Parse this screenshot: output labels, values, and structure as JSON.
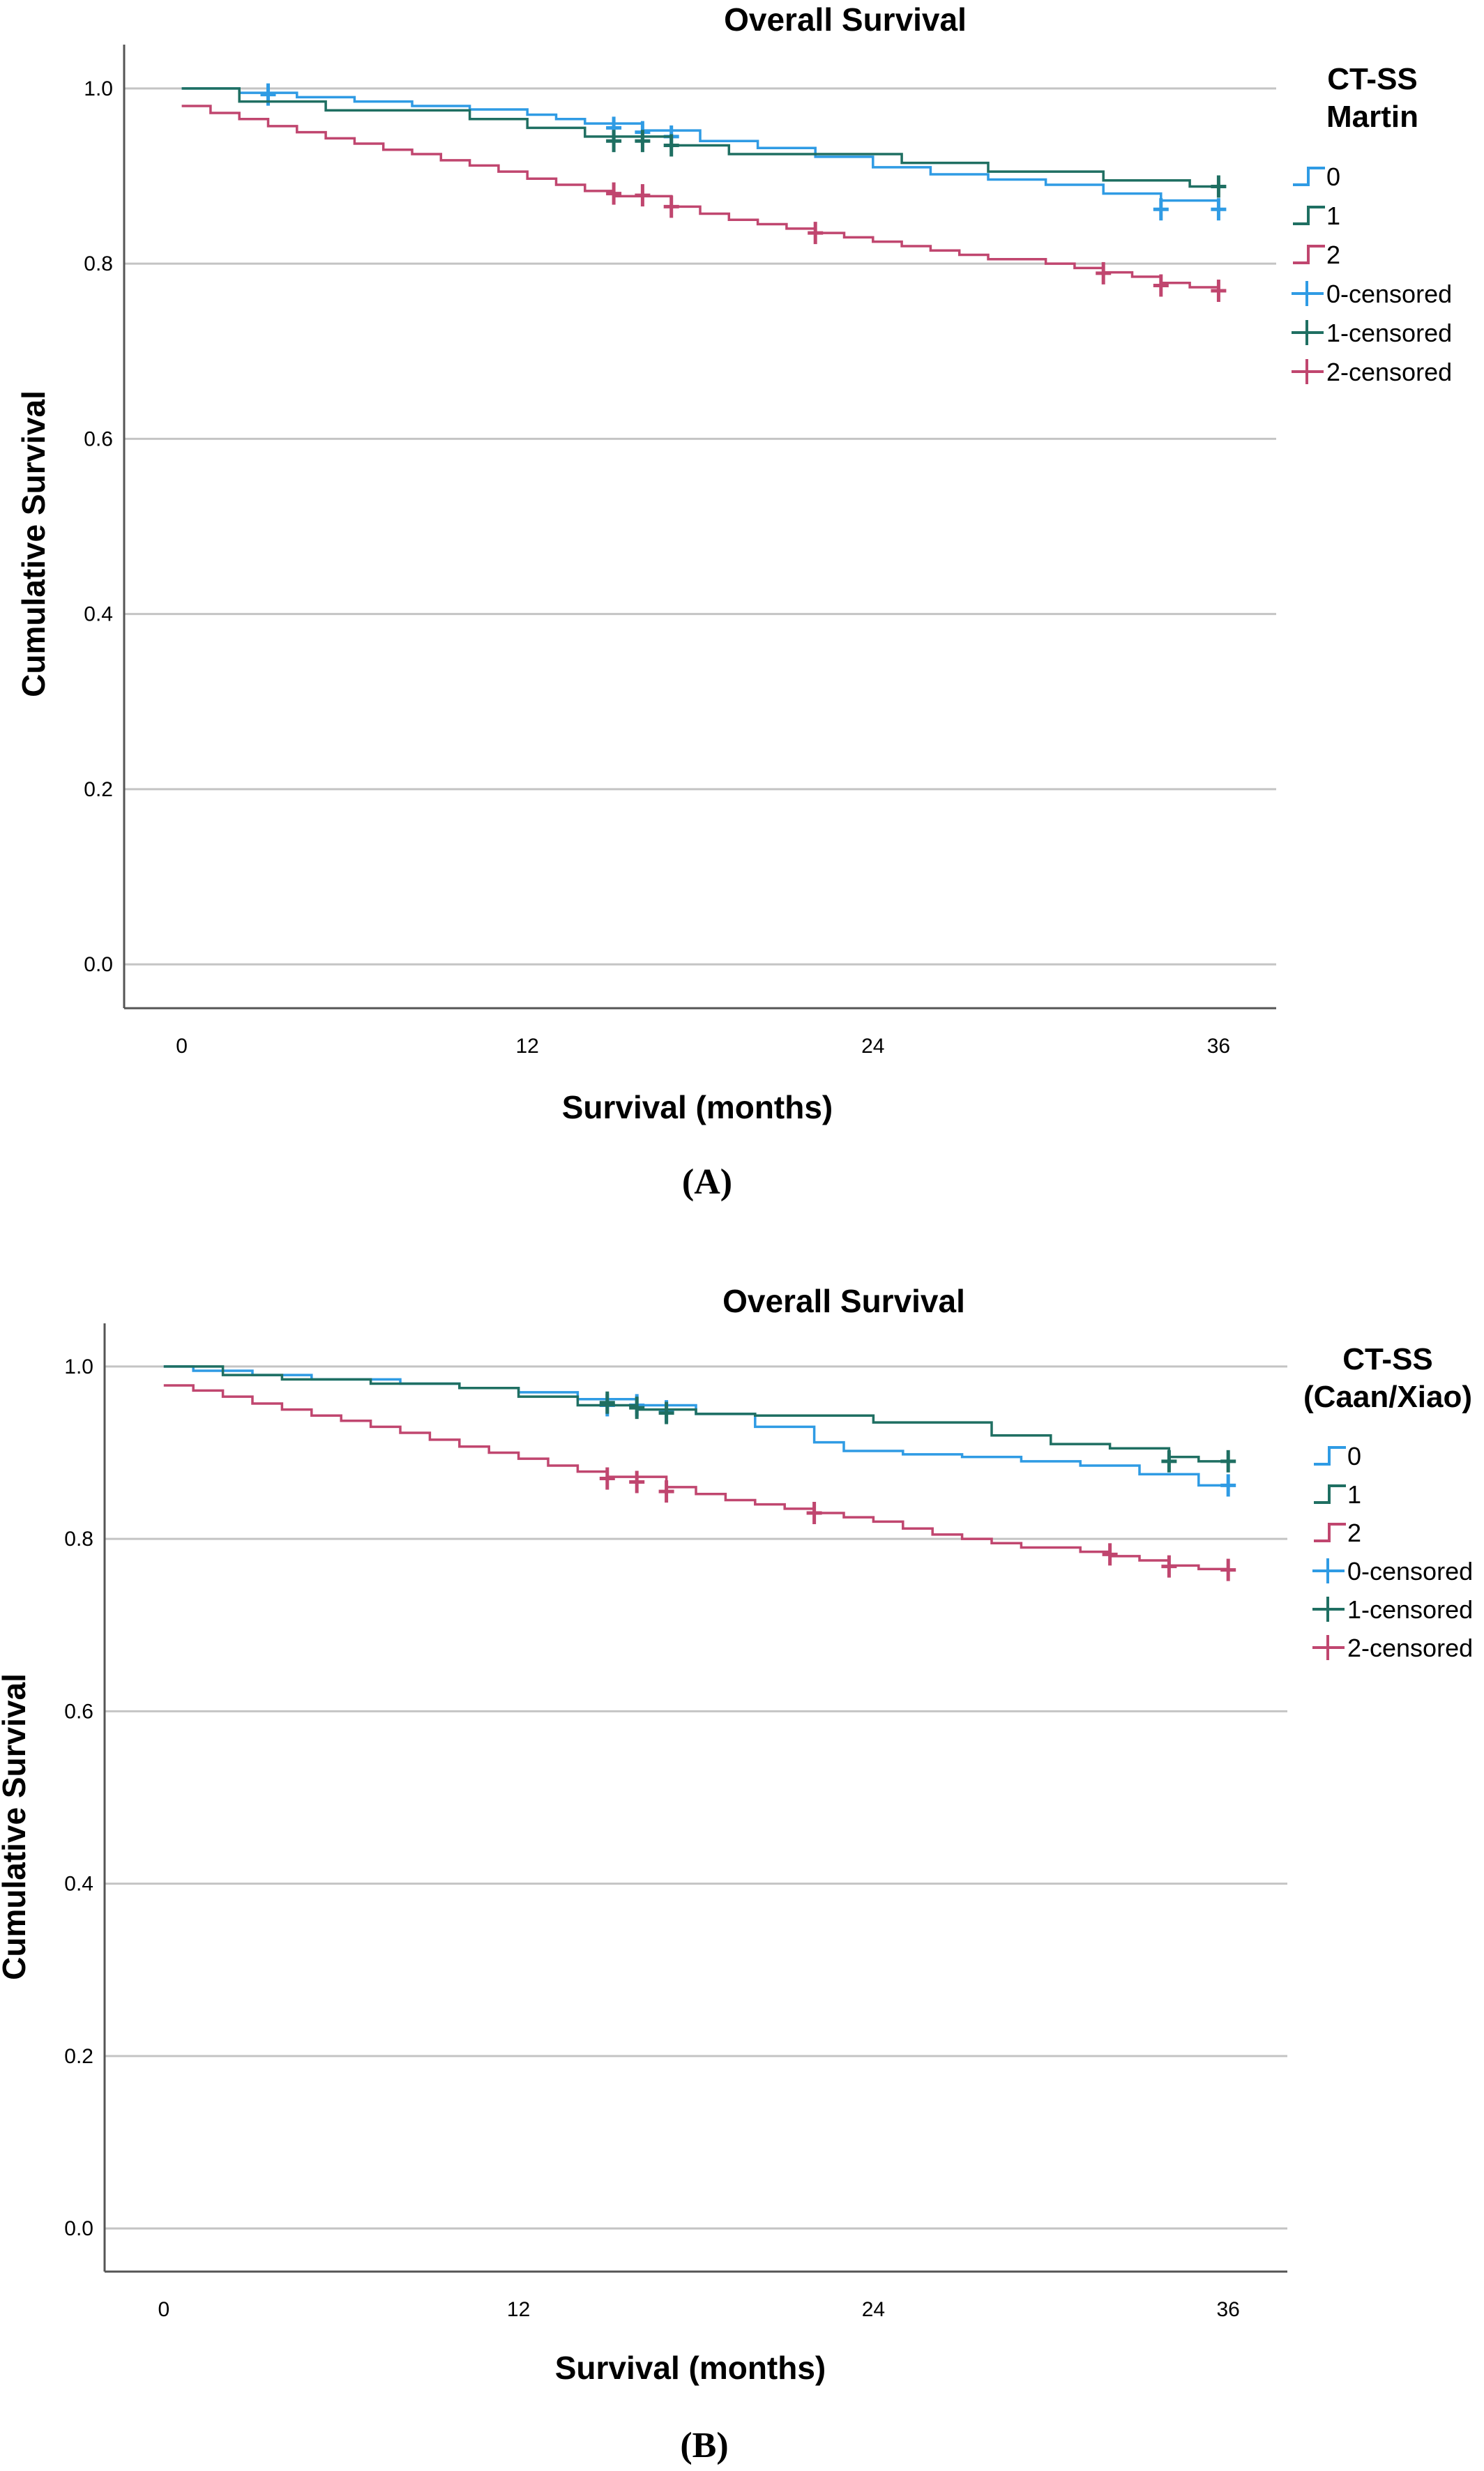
{
  "chart_data": [
    {
      "type": "line",
      "title": "Overall Survival",
      "caption": "(A)",
      "xlabel": "Survival (months)",
      "ylabel": "Cumulative Survival",
      "xlim": [
        -2,
        38
      ],
      "ylim": [
        -0.05,
        1.05
      ],
      "x_ticks": [
        "0",
        "12",
        "24",
        "36"
      ],
      "y_ticks": [
        "0.0",
        "0.2",
        "0.4",
        "0.6",
        "0.8",
        "1.0"
      ],
      "grid": "horizontal",
      "legend": {
        "title": [
          "CT-SS",
          "Martin"
        ],
        "placement": "right",
        "entries": [
          "0",
          "1",
          "2",
          "0-censored",
          "1-censored",
          "2-censored"
        ]
      },
      "series": [
        {
          "name": "0",
          "color": "#2f9be4",
          "steps": [
            [
              0,
              1.0
            ],
            [
              2,
              0.995
            ],
            [
              4,
              0.99
            ],
            [
              6,
              0.985
            ],
            [
              8,
              0.98
            ],
            [
              10,
              0.976
            ],
            [
              12,
              0.97
            ],
            [
              13,
              0.965
            ],
            [
              14,
              0.96
            ],
            [
              16,
              0.952
            ],
            [
              18,
              0.94
            ],
            [
              20,
              0.932
            ],
            [
              22,
              0.922
            ],
            [
              24,
              0.91
            ],
            [
              26,
              0.902
            ],
            [
              28,
              0.896
            ],
            [
              30,
              0.89
            ],
            [
              32,
              0.88
            ],
            [
              34,
              0.872
            ],
            [
              36,
              0.862
            ]
          ],
          "censored": [
            [
              3,
              0.993
            ],
            [
              15,
              0.955
            ],
            [
              16,
              0.95
            ],
            [
              17,
              0.945
            ],
            [
              34,
              0.862
            ],
            [
              36,
              0.862
            ]
          ]
        },
        {
          "name": "1",
          "color": "#1f6f62",
          "steps": [
            [
              0,
              1.0
            ],
            [
              2,
              0.985
            ],
            [
              5,
              0.975
            ],
            [
              10,
              0.965
            ],
            [
              12,
              0.955
            ],
            [
              14,
              0.945
            ],
            [
              17,
              0.935
            ],
            [
              19,
              0.925
            ],
            [
              25,
              0.915
            ],
            [
              28,
              0.905
            ],
            [
              32,
              0.895
            ],
            [
              35,
              0.888
            ]
          ],
          "censored": [
            [
              15,
              0.94
            ],
            [
              16,
              0.94
            ],
            [
              17,
              0.935
            ],
            [
              36,
              0.888
            ]
          ]
        },
        {
          "name": "2",
          "color": "#c0466f",
          "steps": [
            [
              0,
              0.98
            ],
            [
              1,
              0.972
            ],
            [
              2,
              0.965
            ],
            [
              3,
              0.957
            ],
            [
              4,
              0.95
            ],
            [
              5,
              0.943
            ],
            [
              6,
              0.937
            ],
            [
              7,
              0.93
            ],
            [
              8,
              0.925
            ],
            [
              9,
              0.918
            ],
            [
              10,
              0.912
            ],
            [
              11,
              0.905
            ],
            [
              12,
              0.897
            ],
            [
              13,
              0.89
            ],
            [
              14,
              0.883
            ],
            [
              15,
              0.877
            ],
            [
              17,
              0.865
            ],
            [
              18,
              0.857
            ],
            [
              19,
              0.85
            ],
            [
              20,
              0.845
            ],
            [
              21,
              0.84
            ],
            [
              22,
              0.835
            ],
            [
              23,
              0.83
            ],
            [
              24,
              0.825
            ],
            [
              25,
              0.82
            ],
            [
              26,
              0.815
            ],
            [
              27,
              0.81
            ],
            [
              28,
              0.805
            ],
            [
              30,
              0.8
            ],
            [
              31,
              0.795
            ],
            [
              32,
              0.79
            ],
            [
              33,
              0.785
            ],
            [
              34,
              0.778
            ],
            [
              35,
              0.773
            ],
            [
              36,
              0.77
            ]
          ],
          "censored": [
            [
              15,
              0.88
            ],
            [
              16,
              0.878
            ],
            [
              17,
              0.865
            ],
            [
              22,
              0.835
            ],
            [
              32,
              0.789
            ],
            [
              34,
              0.775
            ],
            [
              36,
              0.769
            ]
          ]
        }
      ]
    },
    {
      "type": "line",
      "title": "Overall Survival",
      "caption": "(B)",
      "xlabel": "Survival (months)",
      "ylabel": "Cumulative Survival",
      "xlim": [
        -2,
        38
      ],
      "ylim": [
        -0.05,
        1.05
      ],
      "x_ticks": [
        "0",
        "12",
        "24",
        "36"
      ],
      "y_ticks": [
        "0.0",
        "0.2",
        "0.4",
        "0.6",
        "0.8",
        "1.0"
      ],
      "grid": "horizontal",
      "legend": {
        "title": [
          "CT-SS",
          "(Caan/Xiao)"
        ],
        "placement": "right",
        "entries": [
          "0",
          "1",
          "2",
          "0-censored",
          "1-censored",
          "2-censored"
        ]
      },
      "series": [
        {
          "name": "0",
          "color": "#2f9be4",
          "steps": [
            [
              0,
              1.0
            ],
            [
              1,
              0.995
            ],
            [
              3,
              0.99
            ],
            [
              5,
              0.985
            ],
            [
              8,
              0.98
            ],
            [
              10,
              0.975
            ],
            [
              12,
              0.97
            ],
            [
              14,
              0.962
            ],
            [
              16,
              0.955
            ],
            [
              18,
              0.945
            ],
            [
              20,
              0.93
            ],
            [
              22,
              0.912
            ],
            [
              23,
              0.902
            ],
            [
              25,
              0.898
            ],
            [
              27,
              0.895
            ],
            [
              29,
              0.89
            ],
            [
              31,
              0.885
            ],
            [
              33,
              0.875
            ],
            [
              35,
              0.862
            ]
          ],
          "censored": [
            [
              15,
              0.955
            ],
            [
              16,
              0.955
            ],
            [
              17,
              0.948
            ],
            [
              36,
              0.862
            ]
          ]
        },
        {
          "name": "1",
          "color": "#1f6f62",
          "steps": [
            [
              0,
              1.0
            ],
            [
              2,
              0.99
            ],
            [
              4,
              0.985
            ],
            [
              7,
              0.98
            ],
            [
              10,
              0.975
            ],
            [
              12,
              0.965
            ],
            [
              14,
              0.955
            ],
            [
              16,
              0.95
            ],
            [
              18,
              0.945
            ],
            [
              20,
              0.943
            ],
            [
              24,
              0.935
            ],
            [
              28,
              0.92
            ],
            [
              30,
              0.91
            ],
            [
              32,
              0.905
            ],
            [
              34,
              0.895
            ],
            [
              35,
              0.89
            ]
          ],
          "censored": [
            [
              15,
              0.958
            ],
            [
              16,
              0.952
            ],
            [
              17,
              0.946
            ],
            [
              34,
              0.89
            ],
            [
              36,
              0.89
            ]
          ]
        },
        {
          "name": "2",
          "color": "#c0466f",
          "steps": [
            [
              0,
              0.978
            ],
            [
              1,
              0.972
            ],
            [
              2,
              0.965
            ],
            [
              3,
              0.957
            ],
            [
              4,
              0.95
            ],
            [
              5,
              0.943
            ],
            [
              6,
              0.937
            ],
            [
              7,
              0.93
            ],
            [
              8,
              0.923
            ],
            [
              9,
              0.915
            ],
            [
              10,
              0.907
            ],
            [
              11,
              0.9
            ],
            [
              12,
              0.893
            ],
            [
              13,
              0.885
            ],
            [
              14,
              0.878
            ],
            [
              15,
              0.872
            ],
            [
              17,
              0.86
            ],
            [
              18,
              0.852
            ],
            [
              19,
              0.845
            ],
            [
              20,
              0.84
            ],
            [
              21,
              0.835
            ],
            [
              22,
              0.83
            ],
            [
              23,
              0.825
            ],
            [
              24,
              0.82
            ],
            [
              25,
              0.812
            ],
            [
              26,
              0.805
            ],
            [
              27,
              0.8
            ],
            [
              28,
              0.795
            ],
            [
              29,
              0.79
            ],
            [
              31,
              0.785
            ],
            [
              32,
              0.78
            ],
            [
              33,
              0.775
            ],
            [
              34,
              0.769
            ],
            [
              35,
              0.765
            ]
          ],
          "censored": [
            [
              15,
              0.87
            ],
            [
              16,
              0.866
            ],
            [
              17,
              0.855
            ],
            [
              22,
              0.83
            ],
            [
              32,
              0.782
            ],
            [
              34,
              0.768
            ],
            [
              36,
              0.764
            ]
          ]
        }
      ]
    }
  ]
}
